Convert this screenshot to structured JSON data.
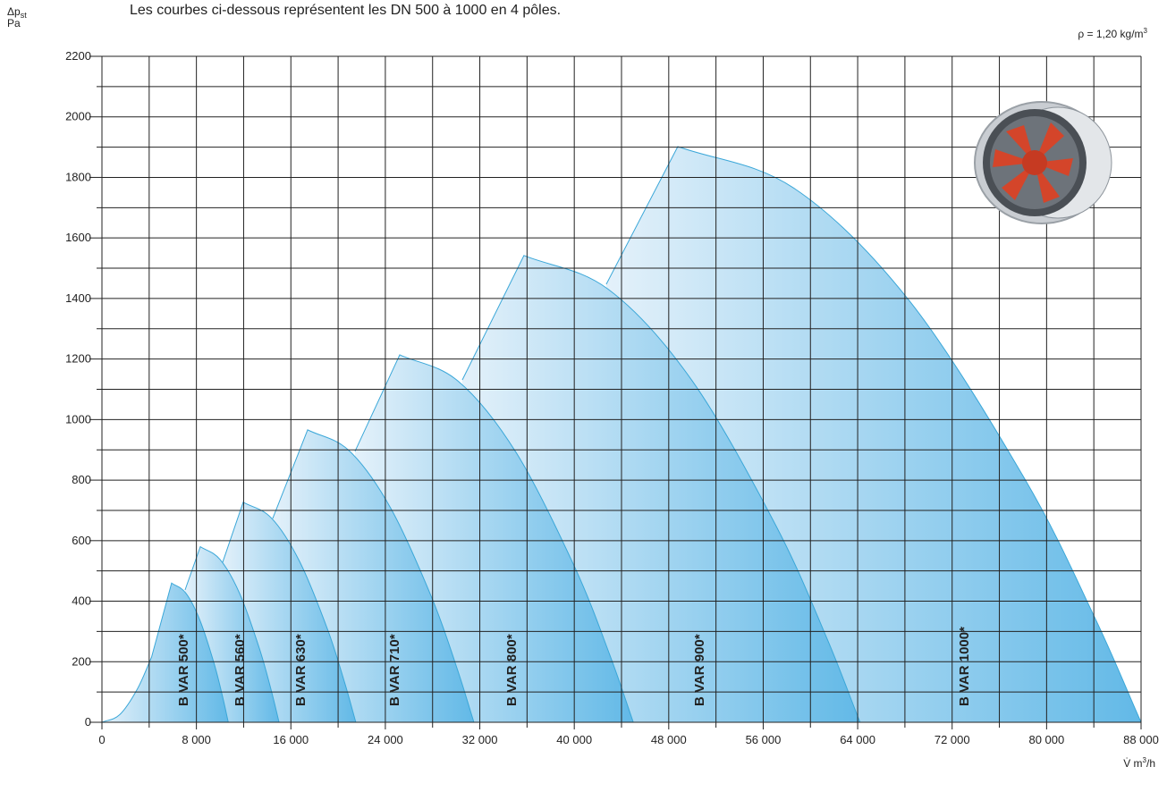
{
  "chart_data": {
    "type": "area",
    "subtitle": "Les courbes ci-dessous représentent les DN 500 à 1000 en 4 pôles.",
    "ylabel": {
      "main": "Δp",
      "sub": "st",
      "unit": "Pa"
    },
    "annotation": {
      "main": "ρ = 1,20 kg/m",
      "sup": "3"
    },
    "xlabel": {
      "main": "V̇ m",
      "sup": "3",
      "tail": "/h"
    },
    "color": "#62b9e7",
    "line_color": "#3ba7d8",
    "grid": true,
    "xlim": [
      0,
      88000
    ],
    "ylim": [
      0,
      2200
    ],
    "xticks": [
      0,
      {
        "value": 8000,
        "label": "8 000"
      },
      {
        "value": 16000,
        "label": "16 000"
      },
      {
        "value": 24000,
        "label": "24 000"
      },
      {
        "value": 32000,
        "label": "32 000"
      },
      {
        "value": 40000,
        "label": "40 000"
      },
      {
        "value": 48000,
        "label": "48 000"
      },
      {
        "value": 56000,
        "label": "56 000"
      },
      {
        "value": 64000,
        "label": "64 000"
      },
      {
        "value": 72000,
        "label": "72 000"
      },
      {
        "value": 80000,
        "label": "80 000"
      },
      {
        "value": 88000,
        "label": "88 000"
      }
    ],
    "yticks": [
      0,
      200,
      400,
      600,
      800,
      1000,
      1200,
      1400,
      1600,
      1800,
      2000,
      2200
    ],
    "series": [
      {
        "name": "B VAR 500*",
        "x": [
          0,
          1500,
          3000,
          4200,
          5900,
          7100,
          8300,
          9500,
          10220,
          10700
        ],
        "values": [
          0,
          25,
          110,
          215,
          460,
          427,
          337,
          194,
          84,
          0
        ]
      },
      {
        "name": "B VAR 560*",
        "x": [
          7040,
          8330,
          9998,
          11665,
          13333,
          14333,
          15000
        ],
        "values": [
          437,
          580,
          538,
          425,
          244,
          106,
          0
        ]
      },
      {
        "name": "B VAR 630*",
        "x": [
          10070,
          11960,
          14345,
          16730,
          19115,
          20546,
          21500
        ],
        "values": [
          511,
          727,
          675,
          532,
          306,
          132,
          0
        ]
      },
      {
        "name": "B VAR 710*",
        "x": [
          14460,
          17420,
          20940,
          24460,
          27980,
          30090,
          31500
        ],
        "values": [
          673,
          966,
          897,
          707,
          407,
          176,
          0
        ]
      },
      {
        "name": "B VAR 800*",
        "x": [
          21430,
          25220,
          30165,
          35110,
          40055,
          43022,
          45000
        ],
        "values": [
          895,
          1214,
          1127,
          889,
          511,
          221,
          0
        ]
      },
      {
        "name": "B VAR 900*",
        "x": [
          30520,
          35740,
          42855,
          49970,
          57085,
          61354,
          64200
        ],
        "values": [
          1131,
          1542,
          1431,
          1129,
          649,
          281,
          0
        ]
      },
      {
        "name": "B VAR 1000*",
        "x": [
          42710,
          48770,
          58578,
          68385,
          78193,
          84077,
          88000
        ],
        "values": [
          1447,
          1902,
          1765,
          1392,
          801,
          346,
          0
        ]
      }
    ]
  }
}
